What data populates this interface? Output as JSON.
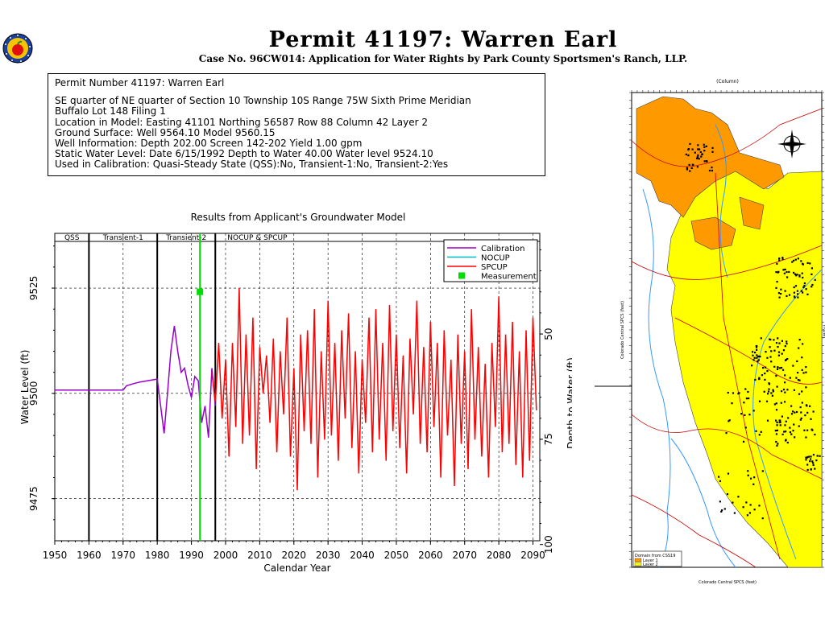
{
  "header": {
    "title": "Permit 41197:  Warren Earl",
    "subtitle": "Case No. 96CW014: Application for Water Rights by Park County Sportsmen's Ranch, LLP."
  },
  "info": {
    "lines": [
      "Permit Number 41197: Warren Earl",
      "SE quarter of NE quarter of Section 10 Township 10S Range 75W Sixth Prime Meridian",
      "Buffalo Lot 148 Filing 1",
      "Location in Model: Easting 41101 Northing  56587 Row   88 Column 42 Layer 2",
      "Ground Surface: Well   9564.10 Model  9560.15",
      "Well Information: Depth    202.00 Screen 142-202 Yield      1.00 gpm",
      "Static Water Level: Date   6/15/1992 Depth to Water     40.00 Water level   9524.10",
      "Used in Calibration: Quasi-Steady State (QSS):No, Transient-1:No, Transient-2:Yes"
    ]
  },
  "colors": {
    "calibration": "#9900cc",
    "nocup": "#00bbbb",
    "spcup": "#ff0000",
    "measurement": "#00dd00"
  },
  "chart_data": {
    "type": "line",
    "title": "Results from Applicant's Groundwater Model",
    "xlabel": "Calendar Year",
    "ylabel": "Water Level (ft)",
    "y2label": "Depth to Water (ft)",
    "xlim": [
      1950,
      2092
    ],
    "ylim": [
      9465,
      9538
    ],
    "xticks": [
      1950,
      1960,
      1970,
      1980,
      1990,
      2000,
      2010,
      2020,
      2030,
      2040,
      2050,
      2060,
      2070,
      2080,
      2090
    ],
    "yticks": [
      9475,
      9500,
      9525
    ],
    "y2ticks": [
      50,
      75,
      100
    ],
    "periods": [
      {
        "label": "QSS",
        "start": 1950,
        "end": 1960
      },
      {
        "label": "Transient-1",
        "start": 1960,
        "end": 1980
      },
      {
        "label": "Transient-2",
        "start": 1980,
        "end": 1997
      },
      {
        "label": "NOCUP  &  SPCUP",
        "start": 1997,
        "end": 2092
      }
    ],
    "legend": [
      "Calibration",
      "NOCUP",
      "SPCUP",
      "Measurement"
    ],
    "legend_position": "top-right",
    "measurement": {
      "year": 1992.5,
      "level": 9524.1
    },
    "series": [
      {
        "name": "Calibration",
        "x": [
          1950,
          1970,
          1971,
          1973,
          1975,
          1977,
          1980,
          1981,
          1982,
          1983,
          1984,
          1985,
          1986,
          1987,
          1988,
          1989,
          1990,
          1991,
          1992,
          1993,
          1994,
          1995,
          1996,
          1997
        ],
        "y": [
          9500.8,
          9500.8,
          9501.8,
          9502.3,
          9502.7,
          9503,
          9503.4,
          9497,
          9490.5,
          9500,
          9510,
          9516,
          9510,
          9505,
          9506,
          9502,
          9499,
          9504,
          9503,
          9493,
          9497,
          9489.5,
          9506,
          9497
        ]
      },
      {
        "name": "SPCUP",
        "x": [
          1996,
          1997,
          1998,
          1999,
          2000,
          2001,
          2002,
          2003,
          2004,
          2005,
          2006,
          2007,
          2008,
          2009,
          2010,
          2011,
          2012,
          2013,
          2014,
          2015,
          2016,
          2017,
          2018,
          2019,
          2020,
          2021,
          2022,
          2023,
          2024,
          2025,
          2026,
          2027,
          2028,
          2029,
          2030,
          2031,
          2032,
          2033,
          2034,
          2035,
          2036,
          2037,
          2038,
          2039,
          2040,
          2041,
          2042,
          2043,
          2044,
          2045,
          2046,
          2047,
          2048,
          2049,
          2050,
          2051,
          2052,
          2053,
          2054,
          2055,
          2056,
          2057,
          2058,
          2059,
          2060,
          2061,
          2062,
          2063,
          2064,
          2065,
          2066,
          2067,
          2068,
          2069,
          2070,
          2071,
          2072,
          2073,
          2074,
          2075,
          2076,
          2077,
          2078,
          2079,
          2080,
          2081,
          2082,
          2083,
          2084,
          2085,
          2086,
          2087,
          2088,
          2089,
          2090,
          2091
        ],
        "y": [
          9505,
          9498,
          9512,
          9494,
          9508,
          9485,
          9512,
          9492,
          9525,
          9488,
          9514,
          9490,
          9518,
          9482,
          9511,
          9500,
          9509,
          9493,
          9513,
          9486,
          9510,
          9495,
          9518,
          9485,
          9506,
          9477,
          9514,
          9491,
          9515,
          9488,
          9520,
          9480,
          9510,
          9489,
          9522,
          9490,
          9512,
          9484,
          9515,
          9494,
          9519,
          9487,
          9510,
          9481,
          9508,
          9493,
          9518,
          9486,
          9520,
          9489,
          9512,
          9484,
          9521,
          9491,
          9514,
          9487,
          9509,
          9481,
          9513,
          9495,
          9522,
          9488,
          9511,
          9486,
          9517,
          9492,
          9512,
          9480,
          9515,
          9490,
          9508,
          9478,
          9514,
          9488,
          9510,
          9482,
          9520,
          9489,
          9511,
          9485,
          9507,
          9480,
          9512,
          9492,
          9523,
          9486,
          9514,
          9488,
          9517,
          9483,
          9510,
          9480,
          9515,
          9484,
          9518,
          9496
        ]
      }
    ]
  },
  "map": {
    "y_axis_label": "Colorado Central SPCS (feet)",
    "x_axis_label": "Colorado Central SPCS (feet)",
    "top_label": "(Column)",
    "right_label": "(Row)",
    "legend_title": "Domain from CSS19",
    "legend_items": [
      "Layer 1",
      "Layer 2"
    ],
    "colors": {
      "layer1": "#ff9900",
      "layer2": "#ffff00",
      "river": "#3399ff",
      "road": "#cc0000",
      "site": "#000000"
    }
  }
}
